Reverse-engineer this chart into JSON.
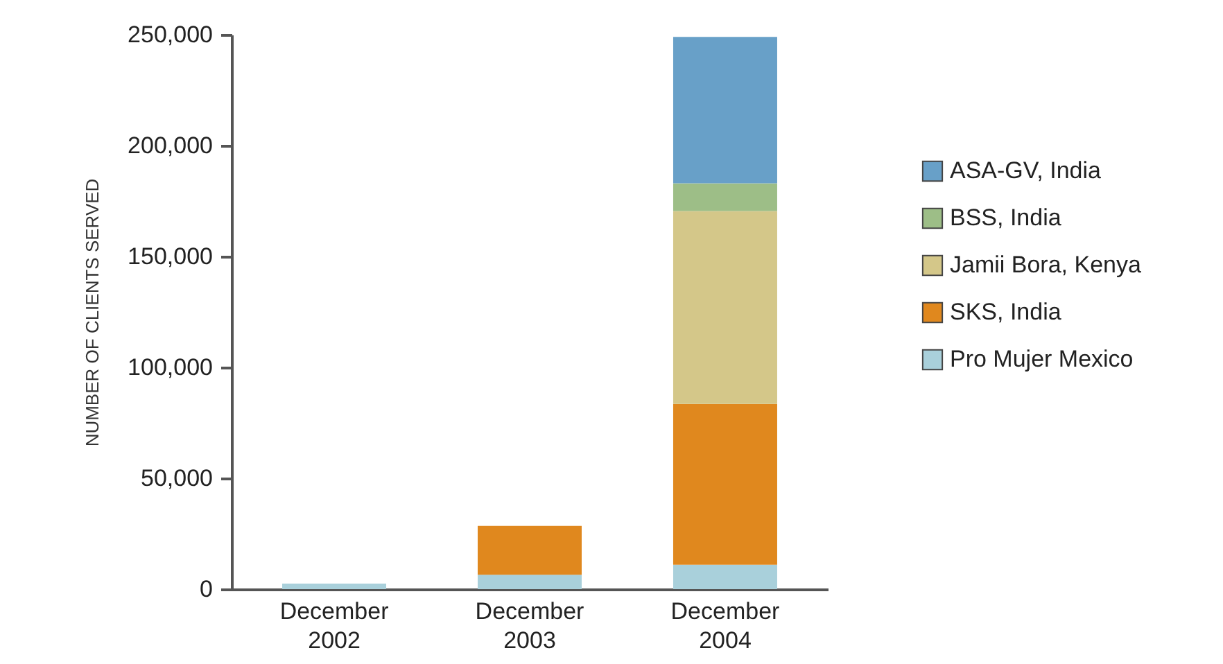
{
  "chart_data": {
    "type": "bar",
    "ylabel": "NUMBER OF CLIENTS SERVED",
    "stacked": true,
    "categories": [
      "December 2002",
      "December 2003",
      "December 2004"
    ],
    "series": [
      {
        "name": "Pro Mujer Mexico",
        "color": "#a9d0db",
        "values": [
          2500,
          6500,
          11000
        ]
      },
      {
        "name": "SKS, India",
        "color": "#e0881e",
        "values": [
          null,
          22000,
          72500
        ]
      },
      {
        "name": "Jamii Bora, Kenya",
        "color": "#d4c789",
        "values": [
          null,
          null,
          87000
        ]
      },
      {
        "name": "BSS, India",
        "color": "#9dbe87",
        "values": [
          null,
          null,
          12500
        ]
      },
      {
        "name": "ASA-GV, India",
        "color": "#68a0c8",
        "values": [
          null,
          null,
          66000
        ]
      }
    ],
    "ylim": [
      0,
      250000
    ],
    "yticks": [
      0,
      {
        "value": 50000,
        "label": "50,000"
      },
      {
        "value": 100000,
        "label": "100,000"
      },
      {
        "value": 150000,
        "label": "150,000"
      },
      {
        "value": 200000,
        "label": "200,000"
      },
      {
        "value": 250000,
        "label": "250,000"
      }
    ],
    "grid": false,
    "legend": "right"
  }
}
